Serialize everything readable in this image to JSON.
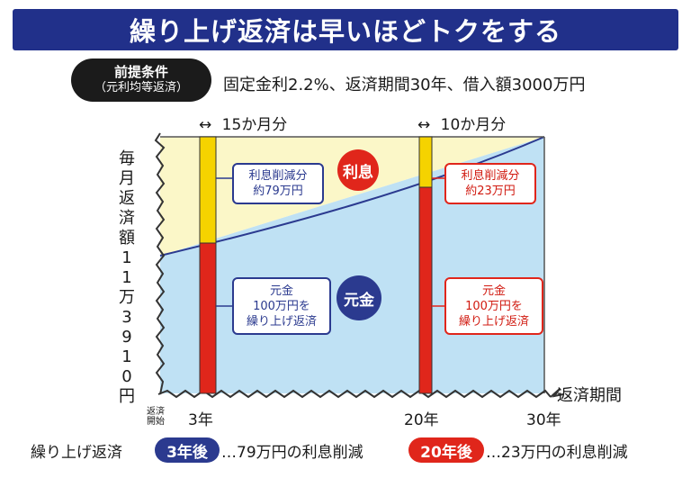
{
  "title": "繰り上げ返済は早いほどトクをする",
  "conditions": {
    "badge_line1": "前提条件",
    "badge_line2": "（元利均等返済）",
    "text": "固定金利2.2%、返済期間30年、借入額3000万円"
  },
  "y_label": "毎月返済額11万3910円",
  "x_axis_label": "返済期間",
  "x_ticks": {
    "start": "返済開始",
    "t1": "3年",
    "t2": "20年",
    "t3": "30年"
  },
  "annotations": {
    "first": {
      "arrow": "↔",
      "duration": "15か月分"
    },
    "second": {
      "arrow": "↔",
      "duration": "10か月分"
    }
  },
  "regions": {
    "interest": "利息",
    "principal": "元金"
  },
  "boxes": {
    "interest_3y": {
      "line1": "利息削減分",
      "line2": "約79万円"
    },
    "principal_3y": {
      "line1": "元金",
      "line2": "100万円を",
      "line3": "繰り上げ返済"
    },
    "interest_20y": {
      "line1": "利息削減分",
      "line2": "約23万円"
    },
    "principal_20y": {
      "line1": "元金",
      "line2": "100万円を",
      "line3": "繰り上げ返済"
    }
  },
  "footer": {
    "label": "繰り上げ返済",
    "pill1": "3年後",
    "text1": "…79万円の利息削減",
    "pill2": "20年後",
    "text2": "…23万円の利息削減"
  },
  "colors": {
    "title_bg": "#21308a",
    "interest_fill": "#fbf7c8",
    "principal_fill": "#bfe1f4",
    "bar_red": "#e0261b",
    "bar_yellow": "#f5d300",
    "navy": "#2b3a8f",
    "red": "#e0261b"
  },
  "icons": [
    "double-arrow-icon",
    "jagged-axis-icon"
  ]
}
